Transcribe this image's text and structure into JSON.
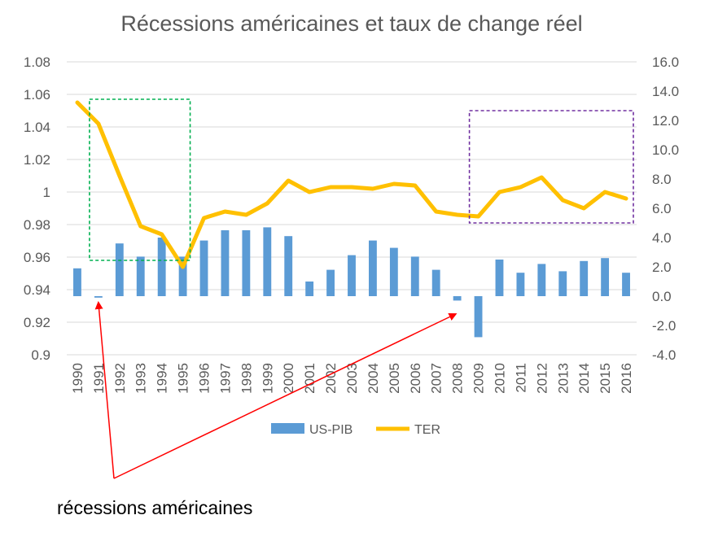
{
  "chart_data": {
    "type": "bar+line",
    "title": "Récessions américaines et taux de change réel",
    "categories": [
      "1990",
      "1991",
      "1992",
      "1993",
      "1994",
      "1995",
      "1996",
      "1997",
      "1998",
      "1999",
      "2000",
      "2001",
      "2002",
      "2003",
      "2004",
      "2005",
      "2006",
      "2007",
      "2008",
      "2009",
      "2010",
      "2011",
      "2012",
      "2013",
      "2014",
      "2015",
      "2016"
    ],
    "series": [
      {
        "name": "US-PIB",
        "type": "bar",
        "axis": "right",
        "color": "#5B9BD5",
        "values": [
          1.9,
          -0.1,
          3.6,
          2.7,
          4.0,
          2.7,
          3.8,
          4.5,
          4.5,
          4.7,
          4.1,
          1.0,
          1.8,
          2.8,
          3.8,
          3.3,
          2.7,
          1.8,
          -0.3,
          -2.8,
          2.5,
          1.6,
          2.2,
          1.7,
          2.4,
          2.6,
          1.6
        ]
      },
      {
        "name": "TER",
        "type": "line",
        "axis": "left",
        "color": "#FFC000",
        "values": [
          1.055,
          1.042,
          1.01,
          0.979,
          0.974,
          0.954,
          0.984,
          0.988,
          0.986,
          0.993,
          1.007,
          1.0,
          1.003,
          1.003,
          1.002,
          1.005,
          1.004,
          0.988,
          0.986,
          0.985,
          1.0,
          1.003,
          1.009,
          0.995,
          0.99,
          1.0,
          0.996
        ]
      }
    ],
    "left_axis": {
      "ylim": [
        0.9,
        1.08
      ],
      "ticks": [
        "1.08",
        "1.06",
        "1.04",
        "1.02",
        "1",
        "0.98",
        "0.96",
        "0.94",
        "0.92",
        "0.9"
      ]
    },
    "right_axis": {
      "ylim": [
        -4.0,
        16.0
      ],
      "ticks": [
        "16.0",
        "14.0",
        "12.0",
        "10.0",
        "8.0",
        "6.0",
        "4.0",
        "2.0",
        "0.0",
        "-2.0",
        "-4.0"
      ]
    },
    "legend": {
      "position": "bottom",
      "items": [
        "US-PIB",
        "TER"
      ]
    },
    "grid": true,
    "highlight_boxes": [
      {
        "name": "box-1991-1995",
        "color": "#00B050",
        "x_from": "1991",
        "x_to": "1995",
        "y_from": 0.958,
        "y_to": 1.057
      },
      {
        "name": "box-2009-2016",
        "color": "#7030A0",
        "x_from": "2009",
        "x_to": "2016",
        "y_from": 0.981,
        "y_to": 1.05
      }
    ],
    "annotation": {
      "text": "récessions américaines",
      "color": "#FF0000",
      "targets": [
        "1991",
        "2008"
      ]
    }
  }
}
